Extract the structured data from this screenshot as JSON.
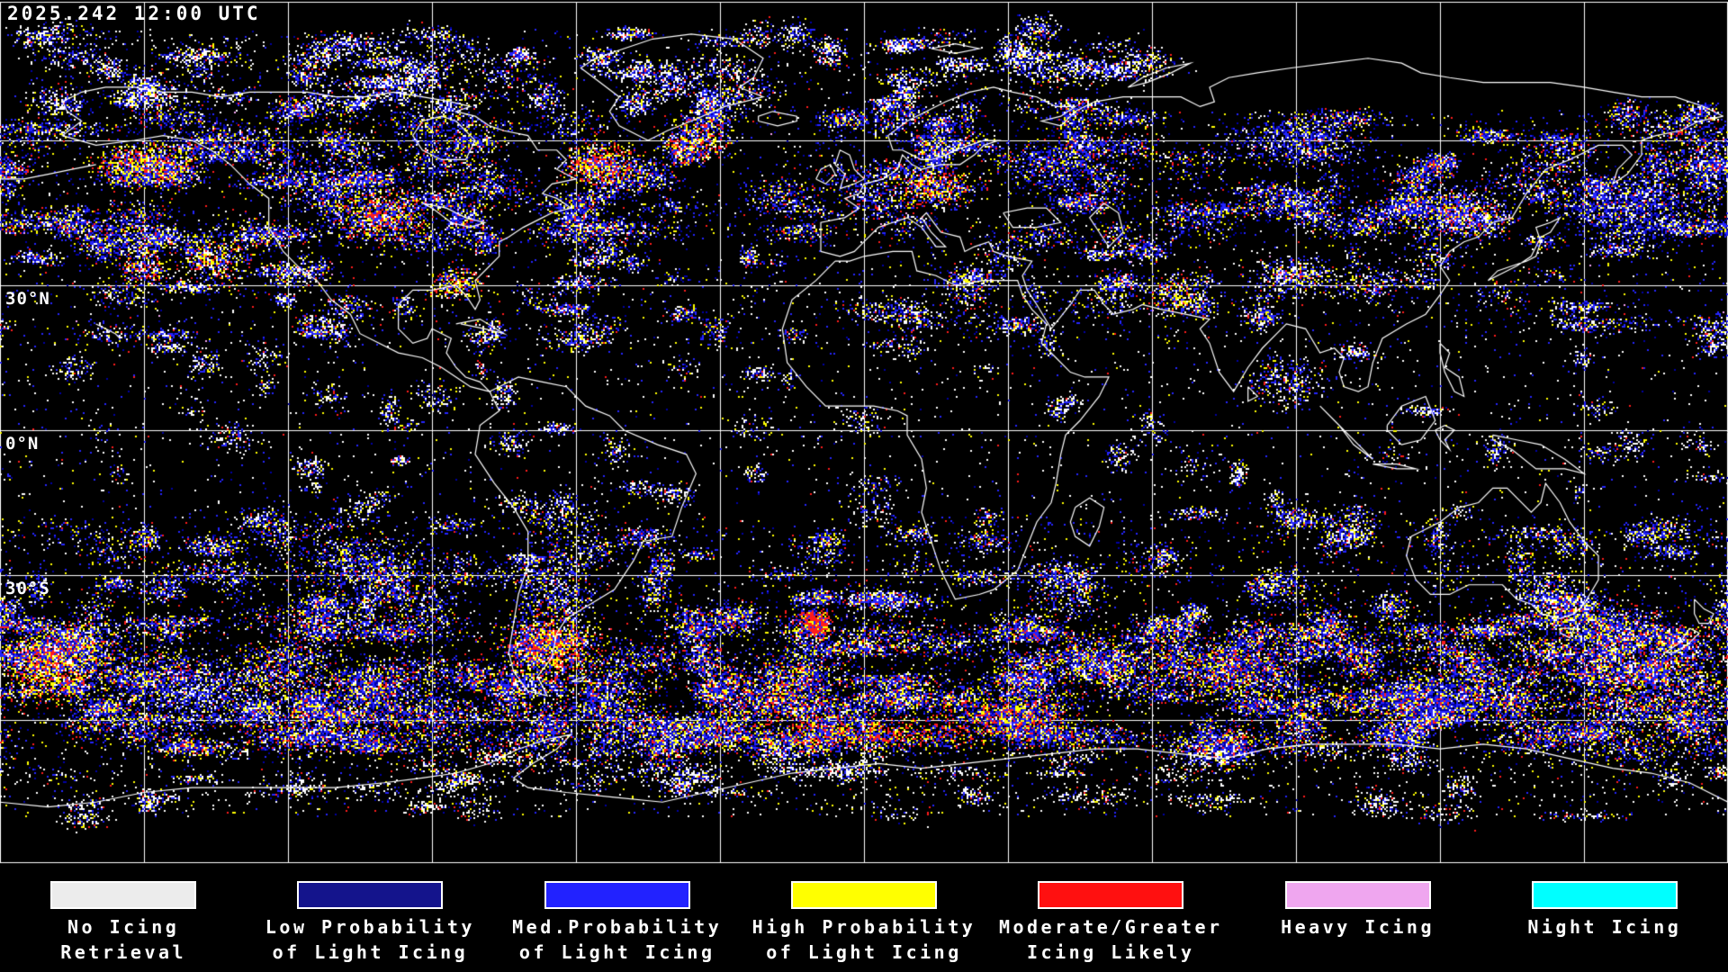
{
  "header": {
    "timestamp": "2025.242 12:00 UTC"
  },
  "map": {
    "background": "#000000",
    "gridline_color": "#ffffff",
    "coastline_color": "#ffffff",
    "grid": {
      "lon_step_deg": 30,
      "lat_lines_deg": [
        60,
        30,
        0,
        -30,
        -60
      ]
    },
    "latitude_labels": [
      {
        "label": "30°N",
        "lat": 30
      },
      {
        "label": "0°N",
        "lat": 0
      },
      {
        "label": "30°S",
        "lat": -30
      }
    ],
    "palette": {
      "white": "#ffffff",
      "navy": "#0000a6",
      "blue": "#2424ff",
      "yellow": "#ffff00",
      "red": "#ff1c1c",
      "plum": "#f2a2f2",
      "cyan": "#00ffff"
    },
    "speckle_seed": 20250242,
    "speckle_bands": [
      {
        "name": "arctic",
        "latMin": 66,
        "latMax": 83,
        "lonMin": -175,
        "lonMax": 60,
        "clusters": 80,
        "pts": 110,
        "spread": [
          6,
          2.5
        ],
        "weights": {
          "white": 5,
          "blue": 3,
          "navy": 2,
          "yellow": 1.2,
          "red": 0.6
        },
        "salt": 900
      },
      {
        "name": "nh-storm",
        "latMin": 38,
        "latMax": 66,
        "clusters": 160,
        "pts": 150,
        "spread": [
          7,
          3
        ],
        "weights": {
          "blue": 4,
          "navy": 2.5,
          "white": 2,
          "yellow": 1.6,
          "red": 0.9,
          "plum": 0.08
        },
        "salt": 2500
      },
      {
        "name": "nh-subtrop",
        "latMin": 18,
        "latMax": 38,
        "clusters": 70,
        "pts": 90,
        "spread": [
          5,
          2.5
        ],
        "weights": {
          "blue": 3,
          "white": 2.5,
          "yellow": 1.2,
          "red": 0.5,
          "navy": 1,
          "plum": 0.06
        },
        "salt": 1500
      },
      {
        "name": "tropics",
        "latMin": -18,
        "latMax": 18,
        "clusters": 60,
        "pts": 60,
        "spread": [
          4,
          2.5
        ],
        "weights": {
          "white": 3,
          "blue": 2,
          "yellow": 0.8,
          "red": 0.25,
          "navy": 0.6
        },
        "salt": 1600
      },
      {
        "name": "sh-subtrop",
        "latMin": -38,
        "latMax": -18,
        "clusters": 90,
        "pts": 110,
        "spread": [
          6,
          3
        ],
        "weights": {
          "blue": 3.5,
          "white": 2.2,
          "yellow": 1.5,
          "navy": 1.2,
          "red": 0.5
        },
        "salt": 1800
      },
      {
        "name": "sh-storm",
        "latMin": -66,
        "latMax": -38,
        "clusters": 230,
        "pts": 200,
        "spread": [
          8,
          3.2
        ],
        "weights": {
          "blue": 4,
          "navy": 2.6,
          "yellow": 2.2,
          "white": 1.8,
          "red": 1.4,
          "plum": 0.1
        },
        "salt": 3000
      },
      {
        "name": "antarctic",
        "latMin": -80,
        "latMax": -66,
        "clusters": 50,
        "pts": 70,
        "spread": [
          7,
          2
        ],
        "weights": {
          "white": 4,
          "blue": 1.5,
          "yellow": 0.8,
          "red": 0.5,
          "navy": 0.7
        },
        "salt": 1200
      }
    ],
    "hotspots": [
      {
        "lon": -150,
        "lat": 55,
        "dlon": 9,
        "dlat": 4,
        "pts": 900,
        "weights": {
          "yellow": 3,
          "red": 2,
          "blue": 2.5,
          "white": 1
        }
      },
      {
        "lon": -135,
        "lat": 35,
        "dlon": 8,
        "dlat": 5,
        "pts": 500,
        "weights": {
          "yellow": 2,
          "red": 1.2,
          "blue": 2,
          "white": 1.5
        }
      },
      {
        "lon": -100,
        "lat": 45,
        "dlon": 9,
        "dlat": 5,
        "pts": 900,
        "weights": {
          "red": 2.2,
          "yellow": 2.2,
          "blue": 2.5,
          "white": 1
        }
      },
      {
        "lon": -85,
        "lat": 30,
        "dlon": 5,
        "dlat": 3,
        "pts": 300,
        "weights": {
          "yellow": 1.5,
          "red": 1,
          "blue": 1.5,
          "white": 1
        }
      },
      {
        "lon": -55,
        "lat": 55,
        "dlon": 7,
        "dlat": 4,
        "pts": 800,
        "weights": {
          "red": 2.5,
          "yellow": 2.5,
          "blue": 2,
          "white": 1
        }
      },
      {
        "lon": -35,
        "lat": 60,
        "dlon": 7,
        "dlat": 3.5,
        "pts": 500,
        "weights": {
          "red": 1.5,
          "yellow": 1.6,
          "blue": 2.2,
          "white": 1.2
        }
      },
      {
        "lon": 15,
        "lat": 50,
        "dlon": 8,
        "dlat": 4,
        "pts": 650,
        "weights": {
          "red": 1.6,
          "yellow": 1.8,
          "blue": 2.4,
          "white": 1
        }
      },
      {
        "lon": 40,
        "lat": 55,
        "dlon": 10,
        "dlat": 5,
        "pts": 600,
        "weights": {
          "blue": 3,
          "navy": 1.5,
          "yellow": 1,
          "red": 0.5,
          "white": 1.2
        }
      },
      {
        "lon": 90,
        "lat": 60,
        "dlon": 14,
        "dlat": 5,
        "pts": 700,
        "weights": {
          "blue": 3,
          "navy": 2,
          "white": 1.5,
          "yellow": 0.8,
          "red": 0.3
        }
      },
      {
        "lon": 125,
        "lat": 45,
        "dlon": 8,
        "dlat": 5,
        "pts": 600,
        "weights": {
          "blue": 2.5,
          "red": 1,
          "yellow": 1,
          "white": 1,
          "plum": 0.3
        }
      },
      {
        "lon": 160,
        "lat": 45,
        "dlon": 12,
        "dlat": 6,
        "pts": 900,
        "weights": {
          "navy": 3,
          "blue": 3,
          "white": 1.5,
          "yellow": 0.5
        }
      },
      {
        "lon": 90,
        "lat": 32,
        "dlon": 8,
        "dlat": 3.5,
        "pts": 450,
        "weights": {
          "blue": 2,
          "white": 2,
          "yellow": 1,
          "red": 0.5,
          "plum": 0.2
        }
      },
      {
        "lon": 65,
        "lat": 28,
        "dlon": 6,
        "dlat": 4,
        "pts": 350,
        "weights": {
          "yellow": 1.5,
          "red": 0.8,
          "blue": 1.5,
          "white": 1.5,
          "plum": 0.25
        }
      },
      {
        "lon": 88,
        "lat": 10,
        "dlon": 8,
        "dlat": 5,
        "pts": 300,
        "weights": {
          "blue": 2,
          "white": 1.5,
          "yellow": 0.7,
          "red": 0.3
        }
      },
      {
        "lon": -105,
        "lat": -28,
        "dlon": 14,
        "dlat": 6,
        "pts": 900,
        "weights": {
          "blue": 3,
          "yellow": 1.5,
          "white": 1.5,
          "navy": 1.2,
          "red": 0.4
        }
      },
      {
        "lon": -65,
        "lat": -45,
        "dlon": 9,
        "dlat": 7,
        "pts": 1200,
        "weights": {
          "red": 2.5,
          "yellow": 2.5,
          "blue": 2.5,
          "white": 1
        }
      },
      {
        "lon": -10,
        "lat": -40,
        "dlon": 2.5,
        "dlat": 2.5,
        "pts": 500,
        "weights": {
          "red": 4,
          "yellow": 1,
          "blue": 1
        }
      },
      {
        "lon": -20,
        "lat": -55,
        "dlon": 12,
        "dlat": 6,
        "pts": 1000,
        "weights": {
          "red": 2,
          "yellow": 2,
          "blue": 2.5,
          "navy": 1.5,
          "white": 1
        }
      },
      {
        "lon": 30,
        "lat": -60,
        "dlon": 14,
        "dlat": 5,
        "pts": 1000,
        "weights": {
          "red": 2.2,
          "yellow": 2,
          "blue": 2.5,
          "navy": 1.5
        }
      },
      {
        "lon": 75,
        "lat": -50,
        "dlon": 14,
        "dlat": 6,
        "pts": 900,
        "weights": {
          "yellow": 2,
          "red": 1.5,
          "blue": 3,
          "navy": 1.5,
          "white": 1
        }
      },
      {
        "lon": 120,
        "lat": -55,
        "dlon": 14,
        "dlat": 6,
        "pts": 800,
        "weights": {
          "blue": 3,
          "navy": 2,
          "yellow": 1.5,
          "red": 0.8,
          "white": 1
        }
      },
      {
        "lon": 165,
        "lat": -50,
        "dlon": 12,
        "dlat": 6,
        "pts": 800,
        "weights": {
          "blue": 3,
          "yellow": 1.5,
          "red": 1.5,
          "white": 1.2
        }
      },
      {
        "lon": -170,
        "lat": -50,
        "dlon": 8,
        "dlat": 6,
        "pts": 900,
        "weights": {
          "red": 2.5,
          "yellow": 2.5,
          "blue": 2,
          "white": 1
        }
      },
      {
        "lon": -140,
        "lat": -55,
        "dlon": 14,
        "dlat": 6,
        "pts": 900,
        "weights": {
          "blue": 3,
          "white": 2,
          "navy": 1.5,
          "yellow": 0.8
        }
      },
      {
        "lon": 0,
        "lat": -63,
        "dlon": 25,
        "dlat": 3,
        "pts": 800,
        "weights": {
          "red": 2.5,
          "yellow": 2,
          "blue": 2
        }
      },
      {
        "lon": -150,
        "lat": 33,
        "dlon": 5,
        "dlat": 3,
        "pts": 250,
        "weights": {
          "red": 1.5,
          "yellow": 1.5,
          "blue": 1.5,
          "white": 1
        }
      }
    ]
  },
  "legend": {
    "items": [
      {
        "label1": "No Icing",
        "label2": "Retrieval",
        "color": "#ececec"
      },
      {
        "label1": "Low Probability",
        "label2": "of Light Icing",
        "color": "#14148c"
      },
      {
        "label1": "Med.Probability",
        "label2": "of Light Icing",
        "color": "#2222ff"
      },
      {
        "label1": "High Probability",
        "label2": "of Light Icing",
        "color": "#ffff00"
      },
      {
        "label1": "Moderate/Greater",
        "label2": "Icing Likely",
        "color": "#ff1010"
      },
      {
        "label1": "Heavy Icing",
        "label2": "",
        "color": "#efa6ef"
      },
      {
        "label1": "Night Icing",
        "label2": "",
        "color": "#00ffff"
      }
    ]
  }
}
